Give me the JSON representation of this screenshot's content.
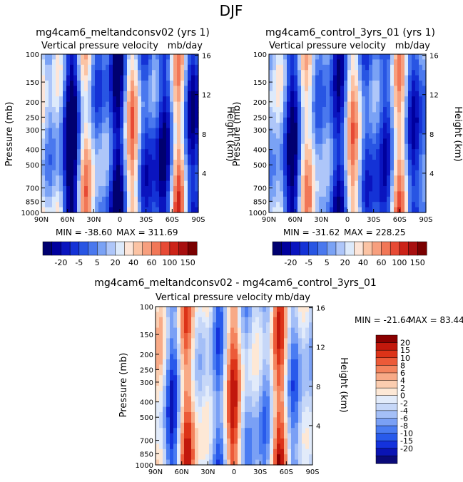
{
  "suptitle": "DJF",
  "colors": {
    "panel_scale": [
      "#000070",
      "#00009e",
      "#0a14bf",
      "#1432d6",
      "#2855e3",
      "#4a78ee",
      "#7aa2f5",
      "#aec6f9",
      "#ddeafb",
      "#fde5d8",
      "#fbc3a4",
      "#f79f7e",
      "#f17757",
      "#e74a35",
      "#cc2318",
      "#a80f0f",
      "#7a0000"
    ],
    "diff_scale": [
      "#0a0a78",
      "#0a14b4",
      "#1432dc",
      "#285aeb",
      "#4a7cf2",
      "#7aa0f5",
      "#a4bff7",
      "#c6d7f8",
      "#e2ebfa",
      "#fde8d6",
      "#fbcdb0",
      "#f8aa87",
      "#f4845e",
      "#ec5a38",
      "#dc3318",
      "#c2180c",
      "#8a0000"
    ]
  },
  "chart_data": [
    {
      "type": "heatmap",
      "title": "mg4cam6_meltandconsv02 (yrs 1)",
      "subtitle_left": "Vertical pressure velocity",
      "subtitle_right": "mb/day",
      "xlabel": "",
      "ylabel": "Pressure (mb)",
      "ylabel_right": "Height (km)",
      "x_ticks": [
        "90N",
        "60N",
        "30N",
        "0",
        "30S",
        "60S",
        "90S"
      ],
      "y_ticks": [
        "100",
        "150",
        "200",
        "250",
        "300",
        "400",
        "500",
        "700",
        "850",
        "1000"
      ],
      "y_right_ticks": [
        "16",
        "12",
        "8",
        "4"
      ],
      "stats": {
        "min_label": "MIN = -38.60",
        "max_label": "MAX = 311.69"
      },
      "colorbar_labels": [
        "-20",
        "-5",
        "5",
        "20",
        "40",
        "60",
        "100",
        "150"
      ],
      "field": {
        "base": -10,
        "amp": 8,
        "seed": 1
      }
    },
    {
      "type": "heatmap",
      "title": "mg4cam6_control_3yrs_01 (yrs 1)",
      "subtitle_left": "Vertical pressure velocity",
      "subtitle_right": "mb/day",
      "xlabel": "",
      "ylabel": "Pressure (mb)",
      "ylabel_right": "Height (km)",
      "x_ticks": [
        "90N",
        "60N",
        "30N",
        "0",
        "30S",
        "60S",
        "90S"
      ],
      "y_ticks": [
        "100",
        "150",
        "200",
        "250",
        "300",
        "400",
        "500",
        "700",
        "850",
        "1000"
      ],
      "y_right_ticks": [
        "16",
        "12",
        "8",
        "4"
      ],
      "stats": {
        "min_label": "MIN = -31.62",
        "max_label": "MAX = 228.25"
      },
      "colorbar_labels": [
        "-20",
        "-5",
        "5",
        "20",
        "40",
        "60",
        "100",
        "150"
      ],
      "field": {
        "base": -9,
        "amp": 7,
        "seed": 2
      }
    },
    {
      "type": "heatmap",
      "title": "mg4cam6_meltandconsv02 - mg4cam6_control_3yrs_01",
      "subtitle_left": "Vertical pressure velocity",
      "subtitle_right": "mb/day",
      "xlabel": "",
      "ylabel": "Pressure (mb)",
      "ylabel_right": "Height (km)",
      "x_ticks": [
        "90N",
        "60N",
        "30N",
        "0",
        "30S",
        "60S",
        "90S"
      ],
      "y_ticks": [
        "100",
        "150",
        "200",
        "250",
        "300",
        "400",
        "500",
        "700",
        "850",
        "1000"
      ],
      "y_right_ticks": [
        "16",
        "12",
        "8",
        "4"
      ],
      "stats": {
        "min_label": "MIN = -21.64",
        "max_label": "MAX =   83.44"
      },
      "colorbar_labels": [
        "20",
        "15",
        "10",
        "8",
        "6",
        "4",
        "2",
        "0",
        "-2",
        "-4",
        "-6",
        "-8",
        "-10",
        "-15",
        "-20"
      ],
      "field": {
        "base": 0,
        "amp": 10,
        "seed": 3
      }
    }
  ]
}
